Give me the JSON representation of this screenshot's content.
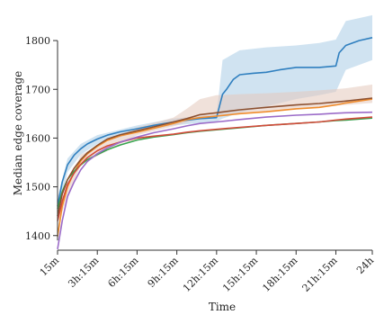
{
  "chart_data": {
    "type": "line",
    "xlabel": "Time",
    "ylabel": "Median edge coverage",
    "x_ticks": [
      "15m",
      "3h:15m",
      "6h:15m",
      "9h:15m",
      "12h:15m",
      "15h:15m",
      "18h:15m",
      "21h:15m",
      "24h"
    ],
    "x_hours": [
      0.25,
      3.25,
      6.25,
      9.25,
      12.25,
      15.25,
      18.25,
      21.25,
      24
    ],
    "y_ticks": [
      1400,
      1500,
      1600,
      1700,
      1800
    ],
    "xlim": [
      0.25,
      24
    ],
    "ylim": [
      1370,
      1850
    ],
    "grid": false,
    "legend": "none",
    "series": [
      {
        "color": "#2f7fbf",
        "band_color": "#aacce6",
        "points": [
          [
            0.25,
            1460
          ],
          [
            0.6,
            1510
          ],
          [
            1,
            1545
          ],
          [
            1.5,
            1565
          ],
          [
            2,
            1578
          ],
          [
            2.5,
            1588
          ],
          [
            3.25,
            1598
          ],
          [
            4,
            1606
          ],
          [
            5,
            1613
          ],
          [
            6.25,
            1619
          ],
          [
            7.5,
            1626
          ],
          [
            9,
            1633
          ],
          [
            10,
            1637
          ],
          [
            11,
            1640
          ],
          [
            12.25,
            1642
          ],
          [
            12.7,
            1690
          ],
          [
            13,
            1700
          ],
          [
            13.5,
            1720
          ],
          [
            14,
            1730
          ],
          [
            15,
            1733
          ],
          [
            16,
            1735
          ],
          [
            17,
            1740
          ],
          [
            18.25,
            1745
          ],
          [
            20,
            1745
          ],
          [
            21.25,
            1748
          ],
          [
            21.5,
            1775
          ],
          [
            22,
            1790
          ],
          [
            23,
            1800
          ],
          [
            24,
            1806
          ]
        ],
        "band": [
          [
            0.25,
            1440,
            1478
          ],
          [
            1,
            1530,
            1558
          ],
          [
            2,
            1566,
            1588
          ],
          [
            3.25,
            1588,
            1606
          ],
          [
            6.25,
            1612,
            1626
          ],
          [
            9,
            1626,
            1640
          ],
          [
            12.25,
            1634,
            1648
          ],
          [
            12.7,
            1640,
            1760
          ],
          [
            14,
            1652,
            1780
          ],
          [
            16,
            1665,
            1786
          ],
          [
            18.25,
            1680,
            1790
          ],
          [
            20,
            1688,
            1795
          ],
          [
            21.25,
            1695,
            1802
          ],
          [
            22,
            1740,
            1840
          ],
          [
            24,
            1760,
            1852
          ]
        ]
      },
      {
        "color": "#f08c2c",
        "band_color": null,
        "points": [
          [
            0.25,
            1398
          ],
          [
            0.6,
            1460
          ],
          [
            1,
            1500
          ],
          [
            1.5,
            1530
          ],
          [
            2,
            1553
          ],
          [
            2.5,
            1568
          ],
          [
            3.25,
            1583
          ],
          [
            4,
            1595
          ],
          [
            5,
            1605
          ],
          [
            6.25,
            1612
          ],
          [
            7.5,
            1620
          ],
          [
            9,
            1630
          ],
          [
            10,
            1638
          ],
          [
            11,
            1642
          ],
          [
            12.25,
            1645
          ],
          [
            14,
            1650
          ],
          [
            16,
            1654
          ],
          [
            18.25,
            1660
          ],
          [
            20,
            1663
          ],
          [
            21.25,
            1668
          ],
          [
            22,
            1672
          ],
          [
            24,
            1680
          ]
        ],
        "band": []
      },
      {
        "color": "#37a24d",
        "band_color": null,
        "points": [
          [
            0.25,
            1455
          ],
          [
            0.6,
            1490
          ],
          [
            1,
            1515
          ],
          [
            1.5,
            1532
          ],
          [
            2,
            1545
          ],
          [
            2.5,
            1556
          ],
          [
            3.25,
            1566
          ],
          [
            4,
            1576
          ],
          [
            5,
            1586
          ],
          [
            6.25,
            1596
          ],
          [
            7.5,
            1602
          ],
          [
            9,
            1607
          ],
          [
            10,
            1611
          ],
          [
            11,
            1614
          ],
          [
            12.25,
            1617
          ],
          [
            14,
            1621
          ],
          [
            16,
            1626
          ],
          [
            18.25,
            1630
          ],
          [
            20,
            1633
          ],
          [
            21.25,
            1636
          ],
          [
            22,
            1637
          ],
          [
            24,
            1641
          ]
        ],
        "band": []
      },
      {
        "color": "#d24a3a",
        "band_color": null,
        "points": [
          [
            0.25,
            1430
          ],
          [
            0.6,
            1470
          ],
          [
            1,
            1505
          ],
          [
            1.5,
            1528
          ],
          [
            2,
            1546
          ],
          [
            2.5,
            1560
          ],
          [
            3.25,
            1574
          ],
          [
            4,
            1584
          ],
          [
            5,
            1592
          ],
          [
            6.25,
            1600
          ],
          [
            7.5,
            1604
          ],
          [
            9,
            1608
          ],
          [
            10,
            1612
          ],
          [
            11,
            1615
          ],
          [
            12.25,
            1618
          ],
          [
            14,
            1622
          ],
          [
            16,
            1626
          ],
          [
            18.25,
            1630
          ],
          [
            20,
            1633
          ],
          [
            21.25,
            1637
          ],
          [
            22,
            1639
          ],
          [
            24,
            1643
          ]
        ],
        "band": []
      },
      {
        "color": "#9b6bc8",
        "band_color": null,
        "points": [
          [
            0.25,
            1372
          ],
          [
            0.6,
            1430
          ],
          [
            1,
            1480
          ],
          [
            1.5,
            1510
          ],
          [
            2,
            1535
          ],
          [
            2.5,
            1552
          ],
          [
            3.25,
            1568
          ],
          [
            4,
            1580
          ],
          [
            5,
            1592
          ],
          [
            6.25,
            1602
          ],
          [
            7.5,
            1611
          ],
          [
            9,
            1619
          ],
          [
            10,
            1625
          ],
          [
            11,
            1630
          ],
          [
            12.25,
            1633
          ],
          [
            14,
            1638
          ],
          [
            16,
            1643
          ],
          [
            18.25,
            1647
          ],
          [
            20,
            1649
          ],
          [
            21.25,
            1651
          ],
          [
            22,
            1652
          ],
          [
            24,
            1653
          ]
        ],
        "band": []
      },
      {
        "color": "#8c5030",
        "band_color": "#e3c9bc",
        "points": [
          [
            0.25,
            1440
          ],
          [
            0.6,
            1485
          ],
          [
            1,
            1515
          ],
          [
            1.5,
            1538
          ],
          [
            2,
            1556
          ],
          [
            2.5,
            1570
          ],
          [
            3.25,
            1585
          ],
          [
            4,
            1598
          ],
          [
            5,
            1607
          ],
          [
            6.25,
            1615
          ],
          [
            7.5,
            1623
          ],
          [
            9,
            1633
          ],
          [
            10,
            1640
          ],
          [
            11,
            1648
          ],
          [
            12.25,
            1652
          ],
          [
            14,
            1658
          ],
          [
            16,
            1663
          ],
          [
            18.25,
            1668
          ],
          [
            20,
            1671
          ],
          [
            21.25,
            1674
          ],
          [
            22,
            1676
          ],
          [
            24,
            1682
          ]
        ],
        "band": [
          [
            0.25,
            1425,
            1455
          ],
          [
            2,
            1545,
            1566
          ],
          [
            6.25,
            1606,
            1622
          ],
          [
            9,
            1624,
            1642
          ],
          [
            10,
            1632,
            1660
          ],
          [
            11,
            1640,
            1680
          ],
          [
            12.25,
            1645,
            1688
          ],
          [
            14,
            1650,
            1690
          ],
          [
            16,
            1655,
            1692
          ],
          [
            18.25,
            1660,
            1695
          ],
          [
            20,
            1664,
            1698
          ],
          [
            22,
            1668,
            1702
          ],
          [
            24,
            1672,
            1710
          ]
        ]
      }
    ]
  }
}
